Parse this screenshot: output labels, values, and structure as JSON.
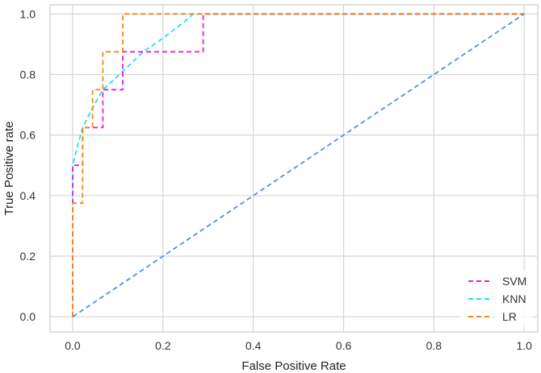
{
  "chart_data": {
    "type": "line",
    "title": "",
    "xlabel": "False Positive Rate",
    "ylabel": "True Positive rate",
    "xlim": [
      -0.05,
      1.03
    ],
    "ylim": [
      -0.05,
      1.03
    ],
    "xticks": [
      0.0,
      0.2,
      0.4,
      0.6,
      0.8,
      1.0
    ],
    "yticks": [
      0.0,
      0.2,
      0.4,
      0.6,
      0.8,
      1.0
    ],
    "xtick_labels": [
      "0.0",
      "0.2",
      "0.4",
      "0.6",
      "0.8",
      "1.0"
    ],
    "ytick_labels": [
      "0.0",
      "0.2",
      "0.4",
      "0.6",
      "0.8",
      "1.0"
    ],
    "grid": true,
    "legend_position": "bottom-right",
    "series": [
      {
        "name": "SVM",
        "color": "#e020e0",
        "style": "dashed",
        "x": [
          0.0,
          0.0,
          0.0,
          0.022,
          0.022,
          0.044,
          0.044,
          0.067,
          0.067,
          0.111,
          0.111,
          0.289,
          0.289,
          1.0
        ],
        "y": [
          0.0,
          0.375,
          0.5,
          0.5,
          0.625,
          0.625,
          0.625,
          0.625,
          0.75,
          0.75,
          0.875,
          0.875,
          1.0,
          1.0
        ]
      },
      {
        "name": "KNN",
        "color": "#20e0f0",
        "style": "dashed",
        "x": [
          0.0,
          0.0,
          0.01,
          0.022,
          0.044,
          0.067,
          0.111,
          0.156,
          0.2,
          0.244,
          0.267,
          1.0
        ],
        "y": [
          0.375,
          0.5,
          0.56,
          0.625,
          0.69,
          0.75,
          0.81,
          0.875,
          0.92,
          0.97,
          1.0,
          1.0
        ]
      },
      {
        "name": "LR",
        "color": "#f08a10",
        "style": "dashed",
        "x": [
          0.0,
          0.0,
          0.022,
          0.022,
          0.044,
          0.044,
          0.067,
          0.067,
          0.111,
          0.111,
          1.0
        ],
        "y": [
          0.0,
          0.375,
          0.375,
          0.625,
          0.625,
          0.75,
          0.75,
          0.875,
          0.875,
          1.0,
          1.0
        ]
      },
      {
        "name": "",
        "color": "#5590e0",
        "style": "dashed",
        "x": [
          0.0,
          1.0
        ],
        "y": [
          0.0,
          1.0
        ]
      }
    ]
  }
}
